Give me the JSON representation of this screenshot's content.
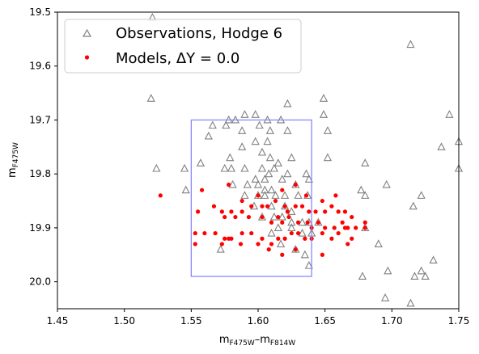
{
  "chart_data": {
    "type": "scatter",
    "xlabel": {
      "main": "m",
      "sub1": "F475W",
      "sep": "–m",
      "sub2": "F814W"
    },
    "ylabel": {
      "main": "m",
      "sub": "F475W"
    },
    "xlim": [
      1.45,
      1.75
    ],
    "ylim": [
      20.05,
      19.5
    ],
    "y_inverted": true,
    "x_ticks": [
      1.45,
      1.5,
      1.55,
      1.6,
      1.65,
      1.7,
      1.75
    ],
    "x_tick_labels": [
      "1.45",
      "1.50",
      "1.55",
      "1.60",
      "1.65",
      "1.70",
      "1.75"
    ],
    "y_ticks": [
      19.5,
      19.6,
      19.7,
      19.8,
      19.9,
      20.0
    ],
    "y_tick_labels": [
      "19.5",
      "19.6",
      "19.7",
      "19.8",
      "19.9",
      "20.0"
    ],
    "grid": false,
    "legend_position": "upper-left",
    "legend": [
      {
        "label": "Observations, Hodge 6",
        "marker": "triangle-open",
        "color": "#808080"
      },
      {
        "label": "Models, ΔY = 0.0",
        "marker": "circle-filled",
        "color": "#ff0000"
      }
    ],
    "highlight_box": {
      "x": [
        1.55,
        1.64
      ],
      "y": [
        19.7,
        19.99
      ],
      "color": "#7f7fff"
    },
    "series": [
      {
        "name": "Observations, Hodge 6",
        "marker": "triangle-open",
        "color": "#808080",
        "points": [
          [
            1.521,
            19.51
          ],
          [
            1.714,
            19.56
          ],
          [
            1.52,
            19.66
          ],
          [
            1.622,
            19.67
          ],
          [
            1.649,
            19.66
          ],
          [
            1.743,
            19.69
          ],
          [
            1.578,
            19.7
          ],
          [
            1.59,
            19.69
          ],
          [
            1.583,
            19.7
          ],
          [
            1.598,
            19.69
          ],
          [
            1.607,
            19.7
          ],
          [
            1.617,
            19.7
          ],
          [
            1.649,
            19.69
          ],
          [
            1.566,
            19.71
          ],
          [
            1.576,
            19.71
          ],
          [
            1.588,
            19.72
          ],
          [
            1.601,
            19.71
          ],
          [
            1.609,
            19.72
          ],
          [
            1.622,
            19.72
          ],
          [
            1.652,
            19.72
          ],
          [
            1.563,
            19.73
          ],
          [
            1.598,
            19.74
          ],
          [
            1.607,
            19.74
          ],
          [
            1.588,
            19.75
          ],
          [
            1.737,
            19.75
          ],
          [
            1.75,
            19.74
          ],
          [
            1.557,
            19.78
          ],
          [
            1.579,
            19.77
          ],
          [
            1.603,
            19.76
          ],
          [
            1.609,
            19.77
          ],
          [
            1.625,
            19.77
          ],
          [
            1.615,
            19.78
          ],
          [
            1.652,
            19.77
          ],
          [
            1.524,
            19.79
          ],
          [
            1.545,
            19.79
          ],
          [
            1.575,
            19.79
          ],
          [
            1.58,
            19.79
          ],
          [
            1.59,
            19.79
          ],
          [
            1.603,
            19.79
          ],
          [
            1.612,
            19.79
          ],
          [
            1.608,
            19.8
          ],
          [
            1.622,
            19.8
          ],
          [
            1.598,
            19.81
          ],
          [
            1.605,
            19.81
          ],
          [
            1.618,
            19.81
          ],
          [
            1.628,
            19.82
          ],
          [
            1.636,
            19.8
          ],
          [
            1.638,
            19.81
          ],
          [
            1.68,
            19.78
          ],
          [
            1.75,
            19.79
          ],
          [
            1.581,
            19.82
          ],
          [
            1.592,
            19.82
          ],
          [
            1.6,
            19.82
          ],
          [
            1.61,
            19.83
          ],
          [
            1.6,
            19.84
          ],
          [
            1.605,
            19.84
          ],
          [
            1.613,
            19.84
          ],
          [
            1.62,
            19.84
          ],
          [
            1.63,
            19.84
          ],
          [
            1.637,
            19.84
          ],
          [
            1.546,
            19.83
          ],
          [
            1.59,
            19.84
          ],
          [
            1.605,
            19.83
          ],
          [
            1.677,
            19.83
          ],
          [
            1.68,
            19.84
          ],
          [
            1.696,
            19.82
          ],
          [
            1.722,
            19.84
          ],
          [
            1.716,
            19.86
          ],
          [
            1.597,
            19.86
          ],
          [
            1.61,
            19.86
          ],
          [
            1.62,
            19.86
          ],
          [
            1.625,
            19.87
          ],
          [
            1.603,
            19.88
          ],
          [
            1.612,
            19.88
          ],
          [
            1.618,
            19.88
          ],
          [
            1.625,
            19.89
          ],
          [
            1.633,
            19.89
          ],
          [
            1.638,
            19.89
          ],
          [
            1.645,
            19.89
          ],
          [
            1.615,
            19.9
          ],
          [
            1.625,
            19.9
          ],
          [
            1.633,
            19.91
          ],
          [
            1.64,
            19.91
          ],
          [
            1.61,
            19.91
          ],
          [
            1.617,
            19.93
          ],
          [
            1.628,
            19.94
          ],
          [
            1.635,
            19.95
          ],
          [
            1.638,
            19.97
          ],
          [
            1.68,
            19.9
          ],
          [
            1.69,
            19.93
          ],
          [
            1.572,
            19.94
          ],
          [
            1.678,
            19.99
          ],
          [
            1.697,
            19.98
          ],
          [
            1.717,
            19.99
          ],
          [
            1.722,
            19.98
          ],
          [
            1.725,
            19.99
          ],
          [
            1.731,
            19.96
          ],
          [
            1.695,
            20.03
          ],
          [
            1.714,
            20.04
          ]
        ]
      },
      {
        "name": "Models, ΔY = 0.0",
        "marker": "circle-filled",
        "color": "#ff0000",
        "points": [
          [
            1.527,
            19.84
          ],
          [
            1.558,
            19.83
          ],
          [
            1.578,
            19.82
          ],
          [
            1.588,
            19.85
          ],
          [
            1.6,
            19.84
          ],
          [
            1.618,
            19.83
          ],
          [
            1.628,
            19.82
          ],
          [
            1.636,
            19.84
          ],
          [
            1.648,
            19.85
          ],
          [
            1.658,
            19.84
          ],
          [
            1.68,
            19.89
          ],
          [
            1.555,
            19.87
          ],
          [
            1.567,
            19.86
          ],
          [
            1.573,
            19.87
          ],
          [
            1.58,
            19.87
          ],
          [
            1.588,
            19.87
          ],
          [
            1.595,
            19.86
          ],
          [
            1.603,
            19.86
          ],
          [
            1.607,
            19.86
          ],
          [
            1.613,
            19.85
          ],
          [
            1.62,
            19.86
          ],
          [
            1.622,
            19.87
          ],
          [
            1.628,
            19.86
          ],
          [
            1.633,
            19.86
          ],
          [
            1.638,
            19.87
          ],
          [
            1.643,
            19.87
          ],
          [
            1.65,
            19.87
          ],
          [
            1.655,
            19.86
          ],
          [
            1.66,
            19.87
          ],
          [
            1.665,
            19.87
          ],
          [
            1.67,
            19.88
          ],
          [
            1.575,
            19.88
          ],
          [
            1.583,
            19.88
          ],
          [
            1.593,
            19.88
          ],
          [
            1.603,
            19.88
          ],
          [
            1.61,
            19.89
          ],
          [
            1.615,
            19.88
          ],
          [
            1.618,
            19.89
          ],
          [
            1.623,
            19.88
          ],
          [
            1.63,
            19.89
          ],
          [
            1.637,
            19.89
          ],
          [
            1.64,
            19.9
          ],
          [
            1.645,
            19.89
          ],
          [
            1.65,
            19.9
          ],
          [
            1.657,
            19.9
          ],
          [
            1.663,
            19.89
          ],
          [
            1.667,
            19.9
          ],
          [
            1.673,
            19.9
          ],
          [
            1.68,
            19.9
          ],
          [
            1.553,
            19.91
          ],
          [
            1.56,
            19.91
          ],
          [
            1.568,
            19.91
          ],
          [
            1.575,
            19.92
          ],
          [
            1.58,
            19.92
          ],
          [
            1.588,
            19.91
          ],
          [
            1.595,
            19.91
          ],
          [
            1.603,
            19.92
          ],
          [
            1.61,
            19.93
          ],
          [
            1.615,
            19.92
          ],
          [
            1.62,
            19.92
          ],
          [
            1.625,
            19.91
          ],
          [
            1.63,
            19.91
          ],
          [
            1.635,
            19.92
          ],
          [
            1.64,
            19.92
          ],
          [
            1.648,
            19.91
          ],
          [
            1.655,
            19.92
          ],
          [
            1.66,
            19.91
          ],
          [
            1.665,
            19.9
          ],
          [
            1.67,
            19.92
          ],
          [
            1.553,
            19.93
          ],
          [
            1.573,
            19.93
          ],
          [
            1.578,
            19.92
          ],
          [
            1.587,
            19.93
          ],
          [
            1.6,
            19.93
          ],
          [
            1.608,
            19.94
          ],
          [
            1.618,
            19.95
          ],
          [
            1.628,
            19.94
          ],
          [
            1.648,
            19.95
          ],
          [
            1.667,
            19.93
          ]
        ]
      }
    ]
  }
}
